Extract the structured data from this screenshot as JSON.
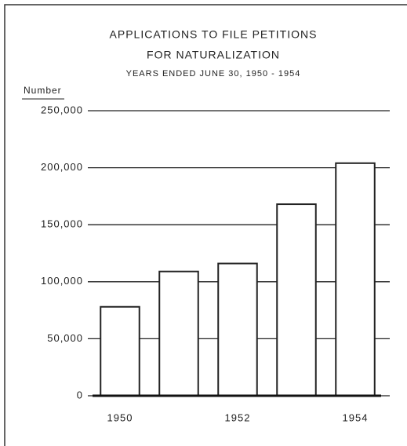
{
  "chart_data": {
    "type": "bar",
    "title": [
      "APPLICATIONS TO FILE PETITIONS",
      "FOR NATURALIZATION"
    ],
    "subtitle": "YEARS ENDED JUNE 30, 1950 - 1954",
    "y_axis_label": "Number",
    "categories": [
      "1950",
      null,
      "1952",
      null,
      "1954"
    ],
    "values": [
      78000,
      109000,
      116000,
      168000,
      204000
    ],
    "color": "#ffffff",
    "ylim": [
      0,
      250000
    ],
    "yticks": [
      0,
      {
        "value": 50000,
        "label": "50,000"
      },
      {
        "value": 100000,
        "label": "100,000"
      },
      {
        "value": 150000,
        "label": "150,000"
      },
      {
        "value": 200000,
        "label": "200,000"
      },
      {
        "value": 250000,
        "label": "250,000"
      }
    ],
    "grid": true
  }
}
